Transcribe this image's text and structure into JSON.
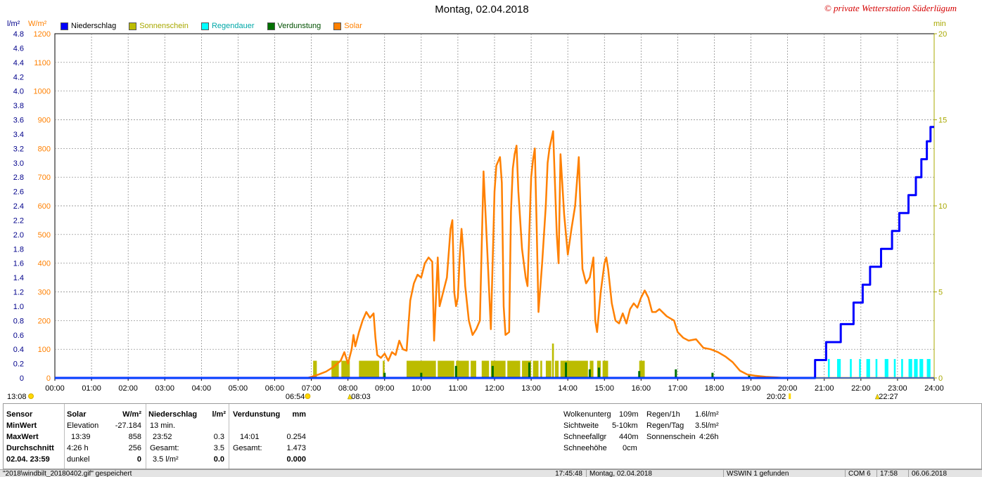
{
  "title": "Montag, 02.04.2018",
  "copyright": "© private Wetterstation Süderlügum",
  "units": {
    "left1": "l/m²",
    "left2": "W/m²",
    "right": "min"
  },
  "legend": [
    {
      "label": "Niederschlag",
      "color": "#0000ff"
    },
    {
      "label": "Sonnenschein",
      "color": "#bcbc00"
    },
    {
      "label": "Regendauer",
      "color": "#00ffff"
    },
    {
      "label": "Verdunstung",
      "color": "#007000"
    },
    {
      "label": "Solar",
      "color": "#ff8000"
    }
  ],
  "chart_data": {
    "type": "line",
    "title": "Montag, 02.04.2018",
    "x_ticks": [
      "00:00",
      "01:00",
      "02:00",
      "03:00",
      "04:00",
      "05:00",
      "06:00",
      "07:00",
      "08:00",
      "09:00",
      "10:00",
      "11:00",
      "12:00",
      "13:00",
      "14:00",
      "15:00",
      "16:00",
      "17:00",
      "18:00",
      "19:00",
      "20:00",
      "21:00",
      "22:00",
      "23:00",
      "24:00"
    ],
    "y_left_rain_ticks": [
      "0",
      "0.2",
      "0.4",
      "0.6",
      "0.8",
      "1.0",
      "1.2",
      "1.4",
      "1.6",
      "1.8",
      "2.0",
      "2.2",
      "2.4",
      "2.6",
      "2.8",
      "3.0",
      "3.2",
      "3.4",
      "3.6",
      "3.8",
      "4.0",
      "4.2",
      "4.4",
      "4.6",
      "4.8"
    ],
    "y_left_solar_ticks": [
      "0",
      "100",
      "200",
      "300",
      "400",
      "500",
      "600",
      "700",
      "800",
      "900",
      "1000",
      "1100",
      "1200"
    ],
    "y_right_min_ticks": [
      "0",
      "5",
      "10",
      "15",
      "20"
    ],
    "ylim_rain": [
      0,
      4.8
    ],
    "ylim_solar": [
      0,
      1200
    ],
    "ylim_minutes": [
      0,
      20
    ],
    "grid": true,
    "sun_markers": [
      {
        "label": "13:08",
        "hour": 0,
        "type": "sun"
      },
      {
        "label": "06:54",
        "hour": 6.9,
        "type": "sunrise"
      },
      {
        "label": "08:03",
        "hour": 8.05,
        "type": "moon"
      },
      {
        "label": "20:02",
        "hour": 20.03,
        "type": "sunset"
      },
      {
        "label": "22:27",
        "hour": 22.45,
        "type": "moon"
      }
    ],
    "series": [
      {
        "name": "Solar",
        "axis": "solar",
        "color": "#ff8000",
        "points": [
          [
            0,
            0
          ],
          [
            6.9,
            0
          ],
          [
            7.0,
            4
          ],
          [
            7.2,
            12
          ],
          [
            7.4,
            22
          ],
          [
            7.6,
            38
          ],
          [
            7.8,
            60
          ],
          [
            7.9,
            90
          ],
          [
            8.0,
            50
          ],
          [
            8.1,
            100
          ],
          [
            8.15,
            150
          ],
          [
            8.2,
            110
          ],
          [
            8.3,
            160
          ],
          [
            8.4,
            200
          ],
          [
            8.5,
            230
          ],
          [
            8.6,
            210
          ],
          [
            8.7,
            225
          ],
          [
            8.75,
            140
          ],
          [
            8.8,
            80
          ],
          [
            8.9,
            70
          ],
          [
            9.0,
            85
          ],
          [
            9.1,
            60
          ],
          [
            9.2,
            90
          ],
          [
            9.3,
            80
          ],
          [
            9.4,
            130
          ],
          [
            9.5,
            100
          ],
          [
            9.6,
            95
          ],
          [
            9.7,
            270
          ],
          [
            9.8,
            330
          ],
          [
            9.9,
            360
          ],
          [
            10.0,
            350
          ],
          [
            10.1,
            400
          ],
          [
            10.2,
            420
          ],
          [
            10.3,
            405
          ],
          [
            10.35,
            130
          ],
          [
            10.45,
            420
          ],
          [
            10.5,
            250
          ],
          [
            10.6,
            300
          ],
          [
            10.7,
            350
          ],
          [
            10.8,
            520
          ],
          [
            10.85,
            550
          ],
          [
            10.9,
            300
          ],
          [
            10.95,
            250
          ],
          [
            11.0,
            280
          ],
          [
            11.05,
            420
          ],
          [
            11.1,
            520
          ],
          [
            11.15,
            440
          ],
          [
            11.2,
            320
          ],
          [
            11.3,
            200
          ],
          [
            11.4,
            150
          ],
          [
            11.5,
            170
          ],
          [
            11.6,
            200
          ],
          [
            11.7,
            720
          ],
          [
            11.8,
            450
          ],
          [
            11.9,
            170
          ],
          [
            12.0,
            650
          ],
          [
            12.05,
            740
          ],
          [
            12.15,
            770
          ],
          [
            12.2,
            680
          ],
          [
            12.25,
            250
          ],
          [
            12.3,
            150
          ],
          [
            12.4,
            160
          ],
          [
            12.45,
            580
          ],
          [
            12.5,
            730
          ],
          [
            12.55,
            780
          ],
          [
            12.6,
            810
          ],
          [
            12.65,
            650
          ],
          [
            12.75,
            450
          ],
          [
            12.85,
            350
          ],
          [
            12.9,
            320
          ],
          [
            13.0,
            700
          ],
          [
            13.05,
            760
          ],
          [
            13.1,
            800
          ],
          [
            13.15,
            530
          ],
          [
            13.2,
            230
          ],
          [
            13.3,
            400
          ],
          [
            13.4,
            600
          ],
          [
            13.45,
            750
          ],
          [
            13.5,
            800
          ],
          [
            13.6,
            860
          ],
          [
            13.7,
            500
          ],
          [
            13.75,
            400
          ],
          [
            13.8,
            780
          ],
          [
            13.9,
            570
          ],
          [
            14.0,
            430
          ],
          [
            14.1,
            520
          ],
          [
            14.2,
            600
          ],
          [
            14.3,
            770
          ],
          [
            14.4,
            380
          ],
          [
            14.5,
            330
          ],
          [
            14.6,
            350
          ],
          [
            14.7,
            420
          ],
          [
            14.75,
            200
          ],
          [
            14.8,
            160
          ],
          [
            14.85,
            230
          ],
          [
            14.9,
            300
          ],
          [
            15.0,
            400
          ],
          [
            15.05,
            420
          ],
          [
            15.1,
            380
          ],
          [
            15.2,
            260
          ],
          [
            15.3,
            200
          ],
          [
            15.4,
            190
          ],
          [
            15.5,
            225
          ],
          [
            15.6,
            190
          ],
          [
            15.7,
            240
          ],
          [
            15.8,
            260
          ],
          [
            15.9,
            245
          ],
          [
            16.0,
            280
          ],
          [
            16.1,
            305
          ],
          [
            16.2,
            280
          ],
          [
            16.3,
            230
          ],
          [
            16.4,
            230
          ],
          [
            16.5,
            240
          ],
          [
            16.7,
            215
          ],
          [
            16.9,
            200
          ],
          [
            17.0,
            160
          ],
          [
            17.15,
            140
          ],
          [
            17.3,
            130
          ],
          [
            17.5,
            135
          ],
          [
            17.7,
            105
          ],
          [
            17.9,
            100
          ],
          [
            18.1,
            90
          ],
          [
            18.3,
            75
          ],
          [
            18.5,
            55
          ],
          [
            18.7,
            25
          ],
          [
            18.9,
            12
          ],
          [
            19.1,
            8
          ],
          [
            19.4,
            4
          ],
          [
            19.7,
            2
          ],
          [
            19.9,
            0
          ],
          [
            24,
            0
          ]
        ]
      },
      {
        "name": "Niederschlag",
        "axis": "rain",
        "color": "#0000ff",
        "points": [
          [
            0,
            0
          ],
          [
            20.75,
            0
          ],
          [
            20.75,
            0.25
          ],
          [
            21.05,
            0.25
          ],
          [
            21.05,
            0.5
          ],
          [
            21.45,
            0.5
          ],
          [
            21.45,
            0.75
          ],
          [
            21.8,
            0.75
          ],
          [
            21.8,
            1.05
          ],
          [
            22.05,
            1.05
          ],
          [
            22.05,
            1.3
          ],
          [
            22.25,
            1.3
          ],
          [
            22.25,
            1.55
          ],
          [
            22.55,
            1.55
          ],
          [
            22.55,
            1.8
          ],
          [
            22.85,
            1.8
          ],
          [
            22.85,
            2.05
          ],
          [
            23.05,
            2.05
          ],
          [
            23.05,
            2.3
          ],
          [
            23.3,
            2.3
          ],
          [
            23.3,
            2.55
          ],
          [
            23.5,
            2.55
          ],
          [
            23.5,
            2.8
          ],
          [
            23.65,
            2.8
          ],
          [
            23.65,
            3.05
          ],
          [
            23.8,
            3.05
          ],
          [
            23.8,
            3.3
          ],
          [
            23.9,
            3.3
          ],
          [
            23.9,
            3.5
          ],
          [
            24,
            3.5
          ]
        ]
      }
    ],
    "sunshine_segments": [
      [
        7.05,
        7.15,
        1
      ],
      [
        7.55,
        7.75,
        1
      ],
      [
        7.82,
        8.05,
        1
      ],
      [
        8.3,
        8.85,
        1
      ],
      [
        8.95,
        9.0,
        1
      ],
      [
        9.6,
        10.4,
        1
      ],
      [
        10.45,
        10.9,
        1
      ],
      [
        10.95,
        11.3,
        1
      ],
      [
        11.35,
        11.5,
        1
      ],
      [
        11.65,
        11.85,
        1
      ],
      [
        11.9,
        12.3,
        1
      ],
      [
        12.35,
        12.7,
        1
      ],
      [
        12.75,
        13.0,
        1
      ],
      [
        13.05,
        13.2,
        1
      ],
      [
        13.25,
        13.3,
        1
      ],
      [
        13.4,
        13.55,
        1
      ],
      [
        13.57,
        13.62,
        2
      ],
      [
        13.65,
        13.75,
        1
      ],
      [
        13.8,
        14.55,
        1
      ],
      [
        14.6,
        14.7,
        1
      ],
      [
        14.8,
        14.9,
        1
      ],
      [
        14.95,
        15.1,
        1
      ],
      [
        15.95,
        16.1,
        1
      ]
    ],
    "regendauer_segments": [
      [
        21.1,
        21.15
      ],
      [
        21.35,
        21.45
      ],
      [
        21.7,
        21.75
      ],
      [
        21.95,
        22.0
      ],
      [
        22.15,
        22.25
      ],
      [
        22.4,
        22.45
      ],
      [
        22.65,
        22.75
      ],
      [
        22.9,
        22.95
      ],
      [
        23.1,
        23.15
      ],
      [
        23.3,
        23.4
      ],
      [
        23.45,
        23.55
      ],
      [
        23.6,
        23.7
      ],
      [
        23.8,
        23.9
      ]
    ],
    "verdunstung_bars": [
      [
        9.0,
        0.3
      ],
      [
        10.0,
        0.3
      ],
      [
        10.95,
        0.7
      ],
      [
        11.95,
        0.7
      ],
      [
        12.95,
        0.9
      ],
      [
        13.95,
        0.9
      ],
      [
        14.6,
        0.5
      ],
      [
        14.85,
        0.6
      ],
      [
        15.95,
        0.4
      ],
      [
        16.95,
        0.5
      ],
      [
        17.95,
        0.3
      ],
      [
        18.95,
        0.2
      ]
    ]
  },
  "stats": {
    "headers": {
      "sensor": "Sensor",
      "solar": "Solar",
      "solar_unit": "W/m²",
      "rain": "Niederschlag",
      "rain_unit": "l/m²",
      "evap": "Verdunstung",
      "evap_unit": "mm"
    },
    "row_labels": {
      "min": "MinWert",
      "max": "MaxWert",
      "avg": "Durchschnitt",
      "date": "02.04. 23:59"
    },
    "solar": {
      "min_label": "Elevation",
      "min_value": "-27.184",
      "max_time": "13:39",
      "max_value": "858",
      "avg_label": "4:26 h",
      "avg_value": "256",
      "date_label": "dunkel",
      "date_value": "0"
    },
    "rain": {
      "min_label": "13 min.",
      "max_time": "23:52",
      "max_value": "0.3",
      "avg_label": "Gesamt:",
      "avg_value": "3.5",
      "date_label": "3.5 l/m²",
      "date_value": "0.0"
    },
    "evap": {
      "max_time": "14:01",
      "max_value": "0.254",
      "avg_label": "Gesamt:",
      "avg_value": "1.473",
      "date_value": "0.000"
    }
  },
  "info": {
    "wolkenunterg_label": "Wolkenunterg",
    "wolkenunterg": "109m",
    "sichtweite_label": "Sichtweite",
    "sichtweite": "5-10km",
    "schneefallgr_label": "Schneefallgr",
    "schneefallgr": "440m",
    "schneehoehe_label": "Schneehöhe",
    "schneehoehe": "0cm",
    "regen1h_label": "Regen/1h",
    "regen1h": "1.6l/m²",
    "regentag_label": "Regen/Tag",
    "regentag": "3.5l/m²",
    "sonnenschein_label": "Sonnenschein",
    "sonnenschein": "4:26h"
  },
  "statusbar": {
    "file": "\"2018\\windbilt_20180402.gif\" gespeichert",
    "time": "17:45:48",
    "date": "Montag, 02.04.2018",
    "wswin": "WSWIN 1 gefunden",
    "com": "COM 6",
    "clock": "17:58",
    "today": "06.06.2018"
  }
}
